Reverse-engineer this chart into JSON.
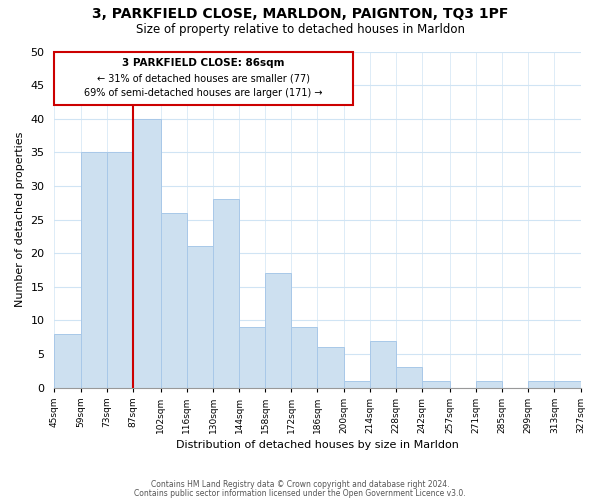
{
  "title": "3, PARKFIELD CLOSE, MARLDON, PAIGNTON, TQ3 1PF",
  "subtitle": "Size of property relative to detached houses in Marldon",
  "xlabel": "Distribution of detached houses by size in Marldon",
  "ylabel": "Number of detached properties",
  "bar_color": "#cde0f0",
  "bar_edgecolor": "#a8c8e8",
  "grid_color": "#d0e4f4",
  "annotation_box_edgecolor": "#cc0000",
  "property_line_color": "#cc0000",
  "property_line_x": 87,
  "annotation_title": "3 PARKFIELD CLOSE: 86sqm",
  "annotation_line1": "← 31% of detached houses are smaller (77)",
  "annotation_line2": "69% of semi-detached houses are larger (171) →",
  "bins": [
    45,
    59,
    73,
    87,
    102,
    116,
    130,
    144,
    158,
    172,
    186,
    200,
    214,
    228,
    242,
    257,
    271,
    285,
    299,
    313,
    327
  ],
  "counts": [
    8,
    35,
    35,
    40,
    26,
    21,
    28,
    9,
    17,
    9,
    6,
    1,
    7,
    3,
    1,
    0,
    1,
    0,
    1,
    1
  ],
  "ylim": [
    0,
    50
  ],
  "yticks": [
    0,
    5,
    10,
    15,
    20,
    25,
    30,
    35,
    40,
    45,
    50
  ],
  "footnote1": "Contains HM Land Registry data © Crown copyright and database right 2024.",
  "footnote2": "Contains public sector information licensed under the Open Government Licence v3.0.",
  "background_color": "#ffffff"
}
